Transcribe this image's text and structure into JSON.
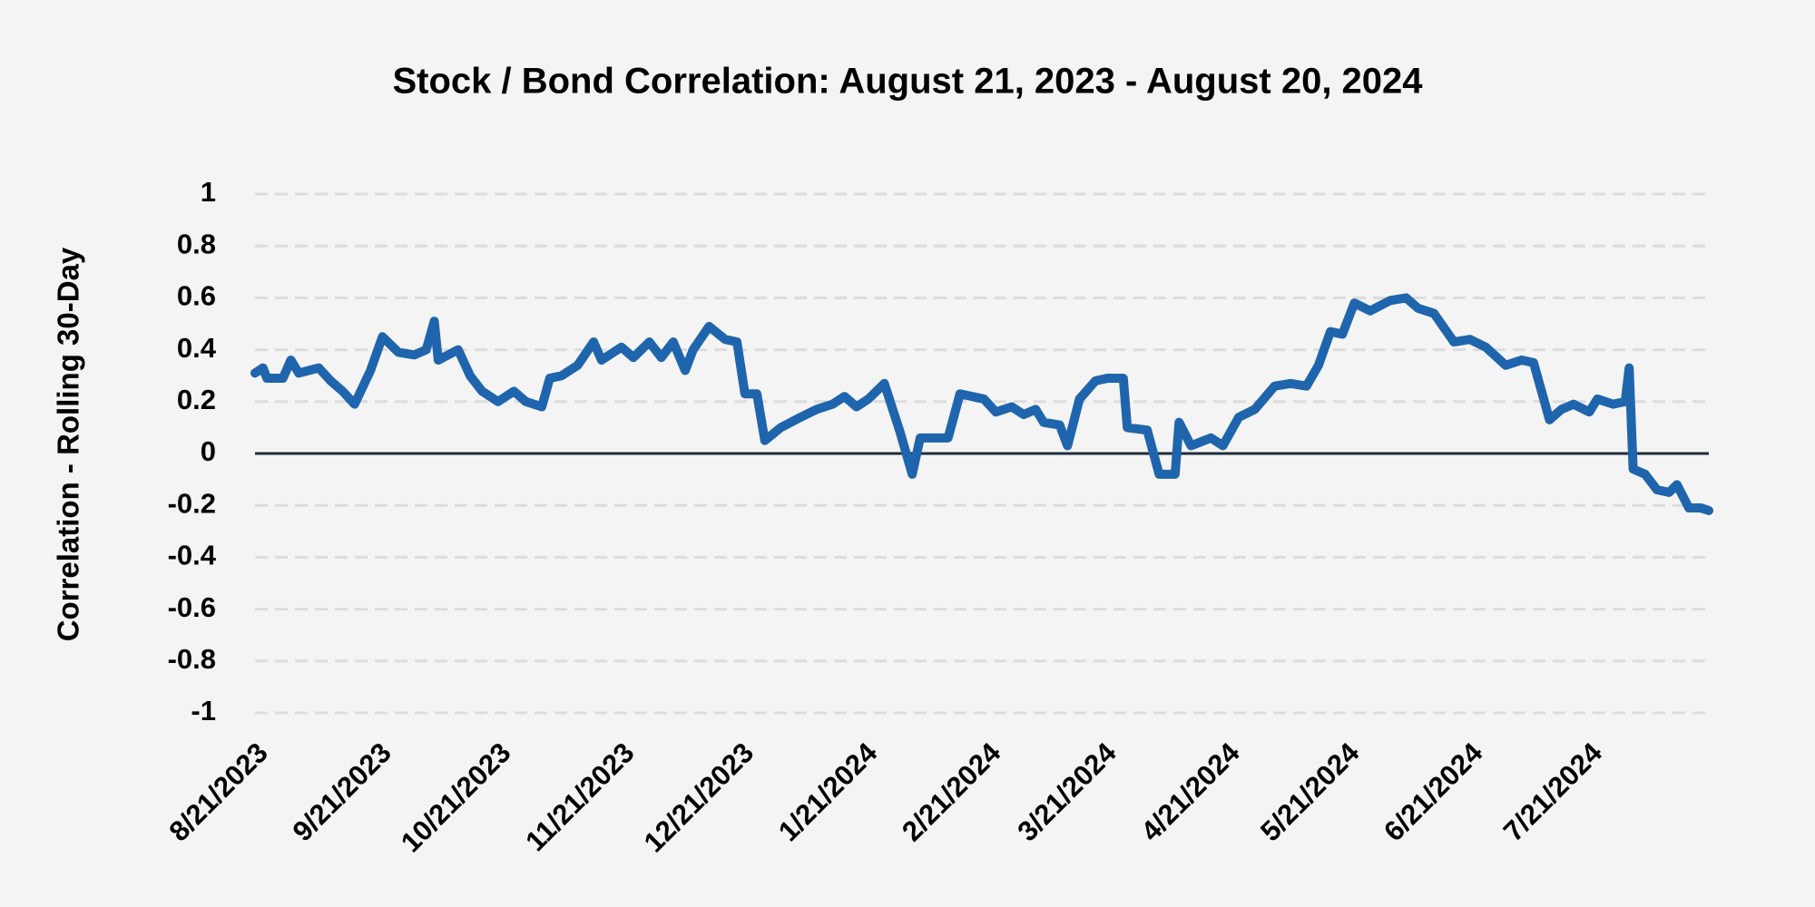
{
  "chart_data": {
    "type": "line",
    "title": "Stock / Bond Correlation: August 21, 2023 - August 20, 2024",
    "y_label": "Correlation - Rolling 30-Day",
    "x": [
      "2023-08-21",
      "2023-08-23",
      "2023-08-24",
      "2023-08-28",
      "2023-08-30",
      "2023-09-01",
      "2023-09-06",
      "2023-09-09",
      "2023-09-12",
      "2023-09-15",
      "2023-09-19",
      "2023-09-22",
      "2023-09-26",
      "2023-09-30",
      "2023-10-03",
      "2023-10-05",
      "2023-10-06",
      "2023-10-11",
      "2023-10-14",
      "2023-10-17",
      "2023-10-21",
      "2023-10-25",
      "2023-10-28",
      "2023-11-01",
      "2023-11-03",
      "2023-11-06",
      "2023-11-10",
      "2023-11-14",
      "2023-11-16",
      "2023-11-21",
      "2023-11-24",
      "2023-11-28",
      "2023-12-01",
      "2023-12-04",
      "2023-12-07",
      "2023-12-09",
      "2023-12-13",
      "2023-12-17",
      "2023-12-20",
      "2023-12-22",
      "2023-12-25",
      "2023-12-27",
      "2023-12-31",
      "2024-01-05",
      "2024-01-09",
      "2024-01-13",
      "2024-01-16",
      "2024-01-19",
      "2024-01-22",
      "2024-01-26",
      "2024-01-30",
      "2024-02-02",
      "2024-02-04",
      "2024-02-07",
      "2024-02-11",
      "2024-02-14",
      "2024-02-20",
      "2024-02-23",
      "2024-02-27",
      "2024-03-01",
      "2024-03-04",
      "2024-03-06",
      "2024-03-10",
      "2024-03-12",
      "2024-03-15",
      "2024-03-19",
      "2024-03-22",
      "2024-03-26",
      "2024-03-27",
      "2024-04-01",
      "2024-04-04",
      "2024-04-08",
      "2024-04-09",
      "2024-04-12",
      "2024-04-17",
      "2024-04-20",
      "2024-04-24",
      "2024-04-28",
      "2024-05-03",
      "2024-05-07",
      "2024-05-11",
      "2024-05-14",
      "2024-05-17",
      "2024-05-20",
      "2024-05-23",
      "2024-05-27",
      "2024-06-01",
      "2024-06-05",
      "2024-06-08",
      "2024-06-12",
      "2024-06-17",
      "2024-06-21",
      "2024-06-25",
      "2024-06-30",
      "2024-07-04",
      "2024-07-07",
      "2024-07-11",
      "2024-07-14",
      "2024-07-17",
      "2024-07-21",
      "2024-07-23",
      "2024-07-27",
      "2024-07-30",
      "2024-07-31",
      "2024-08-01",
      "2024-08-04",
      "2024-08-07",
      "2024-08-10",
      "2024-08-12",
      "2024-08-15",
      "2024-08-18",
      "2024-08-20"
    ],
    "series": [
      {
        "name": "Correlation",
        "color": "#1f65ad",
        "values": [
          0.31,
          0.33,
          0.29,
          0.29,
          0.36,
          0.31,
          0.33,
          0.28,
          0.24,
          0.19,
          0.32,
          0.45,
          0.39,
          0.38,
          0.4,
          0.51,
          0.36,
          0.4,
          0.3,
          0.24,
          0.2,
          0.24,
          0.2,
          0.18,
          0.29,
          0.3,
          0.34,
          0.43,
          0.36,
          0.41,
          0.37,
          0.43,
          0.37,
          0.43,
          0.32,
          0.4,
          0.49,
          0.44,
          0.43,
          0.23,
          0.23,
          0.05,
          0.1,
          0.14,
          0.17,
          0.19,
          0.22,
          0.18,
          0.21,
          0.27,
          0.08,
          -0.08,
          0.06,
          0.06,
          0.06,
          0.23,
          0.21,
          0.16,
          0.18,
          0.15,
          0.17,
          0.12,
          0.11,
          0.03,
          0.21,
          0.28,
          0.29,
          0.29,
          0.1,
          0.09,
          -0.08,
          -0.08,
          0.12,
          0.03,
          0.06,
          0.03,
          0.14,
          0.17,
          0.26,
          0.27,
          0.26,
          0.34,
          0.47,
          0.46,
          0.58,
          0.55,
          0.59,
          0.6,
          0.56,
          0.54,
          0.43,
          0.44,
          0.41,
          0.34,
          0.36,
          0.35,
          0.13,
          0.17,
          0.19,
          0.16,
          0.21,
          0.19,
          0.2,
          0.33,
          -0.06,
          -0.08,
          -0.14,
          -0.15,
          -0.12,
          -0.21,
          -0.21,
          -0.22
        ]
      }
    ],
    "xlim": [
      "2023-08-21",
      "2024-08-20"
    ],
    "xticks": [
      {
        "value": "2023-08-21",
        "label": "8/21/2023"
      },
      {
        "value": "2023-09-21",
        "label": "9/21/2023"
      },
      {
        "value": "2023-10-21",
        "label": "10/21/2023"
      },
      {
        "value": "2023-11-21",
        "label": "11/21/2023"
      },
      {
        "value": "2023-12-21",
        "label": "12/21/2023"
      },
      {
        "value": "2024-01-21",
        "label": "1/21/2024"
      },
      {
        "value": "2024-02-21",
        "label": "2/21/2024"
      },
      {
        "value": "2024-03-21",
        "label": "3/21/2024"
      },
      {
        "value": "2024-04-21",
        "label": "4/21/2024"
      },
      {
        "value": "2024-05-21",
        "label": "5/21/2024"
      },
      {
        "value": "2024-06-21",
        "label": "6/21/2024"
      },
      {
        "value": "2024-07-21",
        "label": "7/21/2024"
      }
    ],
    "ylim": [
      -1,
      1
    ],
    "yticks": [
      1,
      0.8,
      0.6,
      0.4,
      0.2,
      0,
      -0.2,
      -0.4,
      -0.6,
      -0.8,
      -1
    ],
    "grid": true,
    "zero_line": true
  }
}
